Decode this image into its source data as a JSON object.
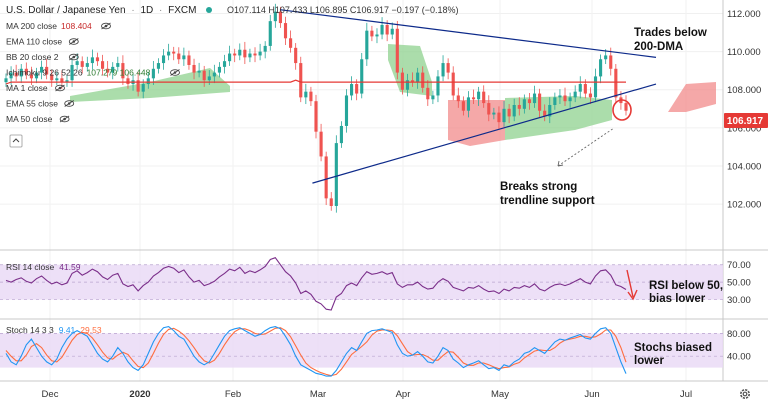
{
  "header": {
    "symbol": "U.S. Dollar / Japanese Yen",
    "interval": "1D",
    "source": "FXCM",
    "ohlc": "O107.114 H107.433 L106.895 C106.917 −0.197 (−0.18%)"
  },
  "legend": [
    {
      "name": "MA 200 close",
      "value": "108.404",
      "color": "#c62828"
    },
    {
      "name": "EMA 110 close",
      "value": "",
      "color": "#555555"
    },
    {
      "name": "BB 20 close 2",
      "value": "",
      "color": "#555555"
    },
    {
      "name": "Ichimoku 9 26 52 26",
      "value": "107.279 106.448",
      "color": "#2e7d32"
    },
    {
      "name": "MA 1 close",
      "value": "",
      "color": "#555555"
    },
    {
      "name": "EMA 55 close",
      "value": "",
      "color": "#555555"
    },
    {
      "name": "MA 50 close",
      "value": "",
      "color": "#555555"
    }
  ],
  "colors": {
    "up": "#26a69a",
    "down": "#ef5350",
    "ma200": "#e53935",
    "trend": "#0d2a8a",
    "rsi": "#7b2f8a",
    "stoch_k": "#2196f3",
    "stoch_d": "#ff6d3f",
    "cloud_green": "#8fd18f",
    "cloud_red": "#f28b8b",
    "last_price": "#e53935",
    "band_fill": "#e8d8f5"
  },
  "annotations": {
    "trades_below": [
      "Trades below",
      "200-DMA"
    ],
    "breaks": [
      "Breaks strong",
      "trendline support"
    ],
    "rsi": [
      "RSI below 50,",
      "bias lower"
    ],
    "stoch": [
      "Stochs biased",
      "lower"
    ]
  },
  "chart_data": {
    "type": "candlestick",
    "price_axis": {
      "ticks": [
        "112.000",
        "110.000",
        "108.000",
        "106.000",
        "104.000",
        "102.000"
      ],
      "range": [
        99.8,
        112.5
      ]
    },
    "last_price": "106.917",
    "time_axis": [
      "Dec",
      "2020",
      "Feb",
      "Mar",
      "Apr",
      "May",
      "Jun",
      "Jul"
    ],
    "price_close": [
      108.6,
      108.9,
      108.7,
      109.1,
      108.8,
      108.6,
      108.9,
      109.2,
      108.8,
      108.5,
      108.6,
      108.4,
      108.5,
      109.3,
      109.5,
      109.2,
      109.4,
      109.7,
      109.5,
      109.1,
      108.9,
      109.2,
      109.4,
      108.6,
      108.3,
      108.5,
      107.9,
      108.3,
      108.6,
      109.1,
      109.4,
      109.8,
      110.0,
      109.9,
      109.6,
      109.8,
      109.3,
      108.9,
      109.0,
      108.5,
      108.7,
      108.9,
      109.2,
      109.5,
      109.9,
      109.8,
      110.1,
      109.7,
      109.9,
      109.8,
      110.0,
      110.3,
      111.6,
      112.1,
      111.5,
      110.7,
      110.2,
      109.4,
      107.6,
      107.9,
      107.4,
      105.8,
      104.5,
      102.3,
      101.9,
      105.2,
      106.1,
      107.7,
      108.3,
      107.8,
      109.6,
      111.1,
      110.8,
      110.9,
      111.4,
      110.9,
      111.2,
      108.9,
      108.0,
      108.5,
      108.4,
      108.9,
      108.1,
      107.5,
      107.7,
      108.7,
      109.4,
      108.9,
      107.7,
      107.4,
      106.9,
      107.6,
      107.5,
      107.9,
      107.3,
      106.7,
      106.8,
      106.3,
      107.0,
      106.6,
      107.2,
      107.0,
      107.5,
      107.3,
      107.8,
      106.9,
      106.6,
      107.2,
      107.6,
      107.7,
      107.4,
      107.6,
      107.9,
      108.3,
      107.8,
      107.6,
      108.7,
      109.6,
      109.8,
      109.1,
      107.6,
      107.3,
      106.9
    ],
    "ma200": [
      108.3,
      108.4,
      108.4,
      108.4,
      108.4,
      108.4,
      108.4,
      108.4,
      108.4,
      108.4,
      108.4,
      108.4,
      108.4,
      108.4,
      108.4,
      108.4,
      108.4,
      108.4,
      108.4,
      108.4,
      108.4,
      108.4,
      108.4,
      108.4,
      108.4,
      108.4,
      108.4,
      108.4,
      108.4,
      108.4,
      108.4,
      108.4,
      108.4,
      108.4,
      108.4,
      108.4,
      108.4,
      108.4,
      108.4,
      108.4,
      108.4,
      108.4,
      108.4,
      108.4,
      108.4,
      108.4,
      108.4,
      108.4,
      108.4,
      108.4,
      108.4,
      108.4,
      108.4,
      108.4,
      108.4,
      108.4,
      108.4,
      108.5,
      108.4,
      108.4,
      108.4,
      108.4,
      108.4,
      108.4,
      108.4,
      108.4,
      108.4,
      108.4,
      108.4,
      108.4,
      108.4,
      108.4,
      108.4,
      108.4,
      108.4,
      108.4,
      108.4,
      108.4,
      108.4,
      108.4,
      108.4,
      108.4,
      108.4,
      108.4,
      108.4,
      108.4,
      108.4,
      108.4,
      108.4,
      108.4,
      108.4,
      108.4,
      108.4,
      108.4,
      108.4,
      108.4,
      108.4,
      108.4,
      108.4,
      108.4,
      108.4,
      108.4,
      108.4,
      108.4,
      108.4,
      108.4,
      108.4,
      108.4,
      108.4,
      108.4,
      108.4,
      108.4,
      108.4,
      108.4,
      108.4,
      108.4,
      108.4,
      108.4,
      108.4,
      108.4,
      108.4,
      108.4,
      108.4
    ],
    "trendlines": [
      {
        "name": "resistance",
        "from": {
          "x": 59,
          "y": 112.2
        },
        "to": {
          "x": 140,
          "y": 109.7
        }
      },
      {
        "name": "support",
        "from": {
          "x": 66,
          "y": 103.1
        },
        "to": {
          "x": 140,
          "y": 108.3
        }
      }
    ],
    "rsi": {
      "label": "RSI 14 close",
      "value": "41.59",
      "ticks": [
        "70.00",
        "50.00",
        "30.00"
      ],
      "range": [
        10,
        80
      ],
      "band": [
        30,
        70
      ],
      "values": [
        52,
        50,
        53,
        55,
        51,
        49,
        54,
        57,
        52,
        48,
        50,
        47,
        49,
        60,
        63,
        58,
        61,
        65,
        62,
        56,
        53,
        58,
        60,
        48,
        45,
        47,
        40,
        46,
        50,
        57,
        61,
        66,
        68,
        66,
        61,
        64,
        56,
        50,
        52,
        46,
        48,
        51,
        56,
        60,
        65,
        63,
        67,
        60,
        63,
        61,
        64,
        68,
        76,
        78,
        70,
        62,
        57,
        49,
        37,
        40,
        36,
        28,
        25,
        19,
        18,
        33,
        37,
        46,
        49,
        46,
        55,
        62,
        59,
        60,
        62,
        59,
        61,
        48,
        44,
        47,
        47,
        50,
        45,
        42,
        43,
        50,
        54,
        51,
        44,
        42,
        40,
        44,
        43,
        46,
        42,
        39,
        40,
        37,
        42,
        40,
        44,
        43,
        46,
        44,
        48,
        42,
        40,
        44,
        47,
        48,
        46,
        48,
        51,
        54,
        50,
        48,
        57,
        63,
        64,
        58,
        47,
        45,
        41.6
      ]
    },
    "stoch": {
      "label": "Stoch 14 3 3",
      "k_value": "9.41",
      "d_value": "29.53",
      "ticks": [
        "80.00",
        "40.00"
      ],
      "range": [
        0,
        100
      ],
      "band": [
        20,
        80
      ],
      "k": [
        45,
        30,
        25,
        40,
        60,
        70,
        55,
        40,
        30,
        25,
        35,
        55,
        70,
        80,
        85,
        80,
        75,
        60,
        45,
        35,
        30,
        40,
        55,
        45,
        30,
        20,
        15,
        25,
        45,
        65,
        80,
        90,
        92,
        85,
        75,
        70,
        55,
        40,
        30,
        25,
        30,
        45,
        60,
        75,
        85,
        88,
        90,
        85,
        80,
        75,
        78,
        85,
        90,
        92,
        88,
        75,
        60,
        40,
        25,
        20,
        15,
        10,
        8,
        5,
        5,
        15,
        30,
        45,
        55,
        50,
        65,
        80,
        85,
        86,
        88,
        85,
        82,
        60,
        45,
        40,
        42,
        48,
        40,
        30,
        28,
        40,
        55,
        50,
        35,
        28,
        20,
        25,
        28,
        32,
        25,
        18,
        20,
        15,
        25,
        22,
        30,
        35,
        45,
        48,
        55,
        50,
        45,
        55,
        65,
        70,
        68,
        72,
        75,
        78,
        72,
        70,
        80,
        88,
        90,
        80,
        55,
        30,
        9.4
      ],
      "d": [
        50,
        40,
        32,
        32,
        42,
        57,
        62,
        55,
        42,
        32,
        30,
        38,
        53,
        68,
        78,
        82,
        80,
        72,
        60,
        47,
        37,
        35,
        42,
        47,
        43,
        32,
        22,
        20,
        28,
        45,
        63,
        78,
        87,
        89,
        84,
        77,
        67,
        55,
        42,
        32,
        28,
        33,
        45,
        60,
        73,
        83,
        88,
        88,
        85,
        80,
        78,
        79,
        84,
        89,
        90,
        85,
        74,
        58,
        42,
        28,
        20,
        15,
        11,
        8,
        6,
        8,
        17,
        30,
        43,
        50,
        57,
        65,
        77,
        84,
        86,
        86,
        85,
        76,
        62,
        48,
        42,
        43,
        43,
        39,
        33,
        33,
        41,
        48,
        47,
        38,
        28,
        24,
        24,
        28,
        28,
        25,
        21,
        18,
        20,
        21,
        26,
        29,
        37,
        43,
        49,
        51,
        50,
        50,
        55,
        63,
        68,
        70,
        72,
        75,
        75,
        73,
        74,
        79,
        86,
        86,
        75,
        55,
        29.5
      ]
    }
  }
}
